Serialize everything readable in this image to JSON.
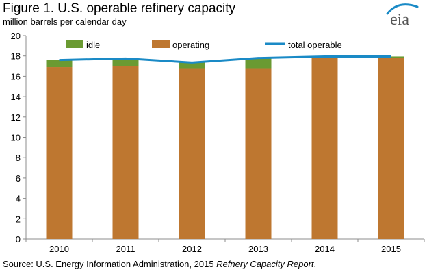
{
  "header": {
    "title": "Figure 1.  U.S. operable refinery capacity",
    "subtitle": "million barrels per calendar day",
    "logo_text": "eia"
  },
  "source": {
    "prefix": "Source:  U.S. Energy Information Administration, 2015 ",
    "report": "Refnery Capacity Report",
    "suffix": "."
  },
  "colors": {
    "idle": "#6a9a32",
    "operating": "#be7730",
    "total_operable": "#1a8ac6",
    "logo_arc": "#1a8ac6",
    "logo_text": "#555555"
  },
  "chart_data": {
    "type": "bar",
    "stacked": true,
    "categories": [
      "2010",
      "2011",
      "2012",
      "2013",
      "2014",
      "2015"
    ],
    "series": [
      {
        "name": "idle",
        "values": [
          0.7,
          0.7,
          0.55,
          1.0,
          0.15,
          0.15
        ]
      },
      {
        "name": "operating",
        "values": [
          16.9,
          17.0,
          16.8,
          16.8,
          17.8,
          17.8
        ]
      }
    ],
    "lines": [
      {
        "name": "total operable",
        "values": [
          17.6,
          17.75,
          17.35,
          17.8,
          17.95,
          17.95
        ]
      }
    ],
    "legend": [
      "idle",
      "operating",
      "total operable"
    ],
    "legend_position": "top",
    "ylim": [
      0,
      20
    ],
    "yticks": [
      0,
      2,
      4,
      6,
      8,
      10,
      12,
      14,
      16,
      18,
      20
    ],
    "xlabel": "",
    "ylabel": "",
    "grid": false
  }
}
